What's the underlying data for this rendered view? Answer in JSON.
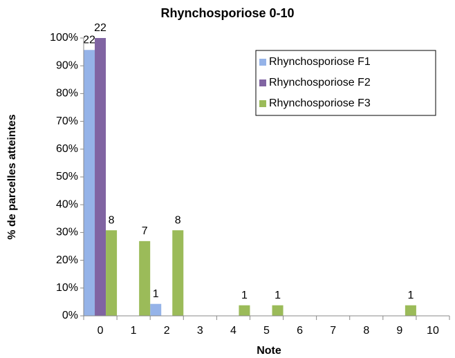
{
  "chart_data": {
    "type": "bar",
    "title": "Rhynchosporiose 0-10",
    "xlabel": "Note",
    "ylabel": "% de parcelles atteintes",
    "categories": [
      "0",
      "1",
      "2",
      "3",
      "4",
      "5",
      "6",
      "7",
      "8",
      "9",
      "10"
    ],
    "series": [
      {
        "name": "Rhynchosporiose F1",
        "color": "#95b3e8",
        "values": [
          95.7,
          0,
          4.3,
          0,
          0,
          0,
          0,
          0,
          0,
          0,
          0
        ],
        "counts": [
          22,
          null,
          1,
          null,
          null,
          null,
          null,
          null,
          null,
          null,
          null
        ]
      },
      {
        "name": "Rhynchosporiose F2",
        "color": "#8064a2",
        "values": [
          100,
          0,
          0,
          0,
          0,
          0,
          0,
          0,
          0,
          0,
          0
        ],
        "counts": [
          22,
          null,
          null,
          null,
          null,
          null,
          null,
          null,
          null,
          null,
          null
        ]
      },
      {
        "name": "Rhynchosporiose F3",
        "color": "#9bbb59",
        "values": [
          30.8,
          26.9,
          30.8,
          0,
          3.8,
          3.8,
          0,
          0,
          0,
          3.8,
          0
        ],
        "counts": [
          8,
          7,
          8,
          null,
          1,
          1,
          null,
          null,
          null,
          1,
          null
        ]
      }
    ],
    "ylim": [
      0,
      100
    ],
    "yticks": [
      {
        "value": 0,
        "label": "0%"
      },
      {
        "value": 10,
        "label": "10%"
      },
      {
        "value": 20,
        "label": "20%"
      },
      {
        "value": 30,
        "label": "30%"
      },
      {
        "value": 40,
        "label": "40%"
      },
      {
        "value": 50,
        "label": "50%"
      },
      {
        "value": 60,
        "label": "60%"
      },
      {
        "value": 70,
        "label": "70%"
      },
      {
        "value": 80,
        "label": "80%"
      },
      {
        "value": 90,
        "label": "90%"
      },
      {
        "value": 100,
        "label": "100%"
      }
    ],
    "legend": "upper right"
  }
}
